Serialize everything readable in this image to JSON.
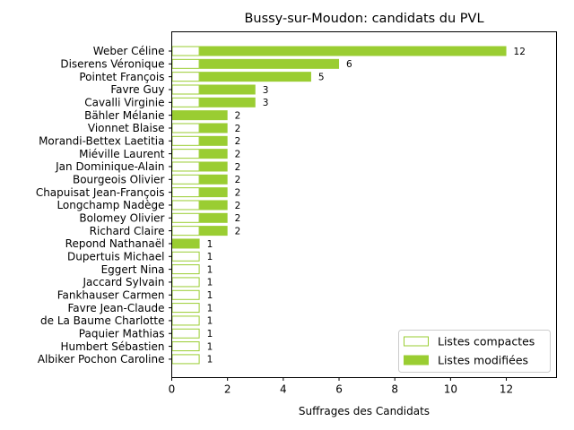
{
  "chart_data": {
    "type": "bar",
    "orientation": "horizontal",
    "title": "Bussy-sur-Moudon: candidats du PVL",
    "xlabel": "Suffrages des Candidats",
    "ylabel": "",
    "xlim": [
      0,
      13.8
    ],
    "xticks": [
      0,
      2,
      4,
      6,
      8,
      10,
      12
    ],
    "legend_position": "lower-right",
    "categories": [
      "Weber Céline",
      "Diserens Véronique",
      "Pointet François",
      "Favre Guy",
      "Cavalli Virginie",
      "Bähler Mélanie",
      "Vionnet Blaise",
      "Morandi-Bettex Laetitia",
      "Miéville Laurent",
      "Jan Dominique-Alain",
      "Bourgeois Olivier",
      "Chapuisat Jean-François",
      "Longchamp Nadège",
      "Bolomey Olivier",
      "Richard Claire",
      "Repond Nathanaël",
      "Dupertuis Michael",
      "Eggert Nina",
      "Jaccard Sylvain",
      "Fankhauser Carmen",
      "Favre Jean-Claude",
      "de La Baume Charlotte",
      "Paquier Mathias",
      "Humbert Sébastien",
      "Albiker Pochon Caroline"
    ],
    "series": [
      {
        "name": "Listes compactes",
        "style": "outline",
        "color": "#9acd32",
        "values": [
          1,
          1,
          1,
          1,
          1,
          0,
          1,
          1,
          1,
          1,
          1,
          1,
          1,
          1,
          1,
          0,
          1,
          1,
          1,
          1,
          1,
          1,
          1,
          1,
          1
        ]
      },
      {
        "name": "Listes modifiées",
        "style": "filled",
        "color": "#9acd32",
        "values": [
          11,
          5,
          4,
          2,
          2,
          2,
          1,
          1,
          1,
          1,
          1,
          1,
          1,
          1,
          1,
          1,
          0,
          0,
          0,
          0,
          0,
          0,
          0,
          0,
          0
        ]
      }
    ],
    "totals": [
      12,
      6,
      5,
      3,
      3,
      2,
      2,
      2,
      2,
      2,
      2,
      2,
      2,
      2,
      2,
      1,
      1,
      1,
      1,
      1,
      1,
      1,
      1,
      1,
      1
    ]
  }
}
